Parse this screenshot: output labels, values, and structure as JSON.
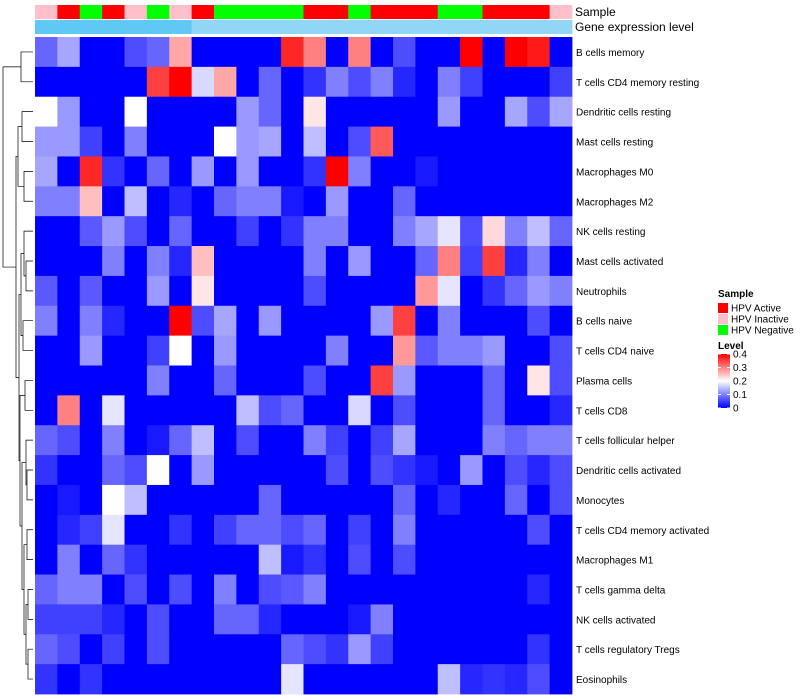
{
  "chart_data": {
    "type": "heatmap",
    "title": "",
    "annotation_tracks": [
      "Sample",
      "Gene expression level"
    ],
    "sample_groups": [
      "HPV Inactive",
      "HPV Active",
      "HPV Negative",
      "HPV Active",
      "HPV Inactive",
      "HPV Negative",
      "HPV Inactive",
      "HPV Active",
      "HPV Negative",
      "HPV Negative",
      "HPV Negative",
      "HPV Negative",
      "HPV Active",
      "HPV Active",
      "HPV Negative",
      "HPV Active",
      "HPV Active",
      "HPV Active",
      "HPV Negative",
      "HPV Negative",
      "HPV Active",
      "HPV Active",
      "HPV Active",
      "HPV Inactive"
    ],
    "expression_track": [
      0.95,
      0.95,
      0.95,
      0.95,
      0.95,
      0.95,
      0.95,
      0.5,
      0.5,
      0.5,
      0.5,
      0.5,
      0.5,
      0.5,
      0.5,
      0.5,
      0.5,
      0.5,
      0.5,
      0.5,
      0.5,
      0.5,
      0.5,
      0.5
    ],
    "rows": [
      "B cells memory",
      "T cells CD4 memory resting",
      "Dendritic cells resting",
      "Mast cells resting",
      "Macrophages M0",
      "Macrophages M2",
      "NK cells resting",
      "Mast cells activated",
      "Neutrophils",
      "B cells naive",
      "T cells CD4 naive",
      "Plasma cells",
      "T cells CD8",
      "T cells follicular helper",
      "Dendritic cells activated",
      "Monocytes",
      "T cells CD4 memory activated",
      "Macrophages M1",
      "T cells gamma delta",
      "NK cells activated",
      "T cells regulatory  Tregs",
      "Eosinophils"
    ],
    "values": [
      [
        0.08,
        0.13,
        0,
        0,
        0.06,
        0.08,
        0.27,
        0,
        0,
        0,
        0,
        0.37,
        0.3,
        0,
        0.3,
        0,
        0.06,
        0,
        0,
        0.4,
        0,
        0.4,
        0.38,
        0
      ],
      [
        0,
        0,
        0,
        0,
        0,
        0.35,
        0.4,
        0.17,
        0.27,
        0,
        0.08,
        0,
        0.04,
        0.1,
        0.06,
        0.1,
        0.03,
        0,
        0.1,
        0.05,
        0,
        0,
        0,
        0.05
      ],
      [
        0.2,
        0.12,
        0,
        0,
        0.2,
        0,
        0,
        0,
        0,
        0.12,
        0.08,
        0,
        0.22,
        0,
        0,
        0,
        0,
        0,
        0.12,
        0,
        0,
        0.13,
        0.06,
        0.13
      ],
      [
        0.12,
        0.12,
        0.05,
        0,
        0.1,
        0,
        0,
        0,
        0.2,
        0.12,
        0.13,
        0,
        0.15,
        0,
        0.06,
        0.33,
        0,
        0,
        0,
        0,
        0,
        0,
        0,
        0
      ],
      [
        0.13,
        0,
        0.37,
        0.04,
        0,
        0.08,
        0,
        0.12,
        0,
        0.12,
        0,
        0,
        0.04,
        0.4,
        0.1,
        0,
        0,
        0.02,
        0,
        0,
        0,
        0,
        0,
        0
      ],
      [
        0.1,
        0.1,
        0.25,
        0,
        0.15,
        0,
        0.03,
        0,
        0.08,
        0.1,
        0.1,
        0.02,
        0,
        0.12,
        0,
        0,
        0.08,
        0,
        0,
        0,
        0,
        0,
        0,
        0
      ],
      [
        0,
        0,
        0.07,
        0.12,
        0.06,
        0,
        0.08,
        0,
        0,
        0.05,
        0,
        0.04,
        0.1,
        0.1,
        0,
        0,
        0.1,
        0.13,
        0.18,
        0.06,
        0.23,
        0.1,
        0.15,
        0.08
      ],
      [
        0,
        0,
        0,
        0.1,
        0,
        0.1,
        0.03,
        0.25,
        0,
        0,
        0,
        0,
        0.1,
        0,
        0.12,
        0,
        0,
        0.08,
        0.3,
        0.05,
        0.35,
        0.03,
        0.1,
        0
      ],
      [
        0.07,
        0,
        0.07,
        0,
        0,
        0.12,
        0,
        0.22,
        0,
        0,
        0,
        0,
        0.06,
        0,
        0,
        0,
        0,
        0.28,
        0.18,
        0,
        0.04,
        0.08,
        0.12,
        0.1
      ],
      [
        0.1,
        0,
        0.1,
        0.03,
        0,
        0,
        0.4,
        0.06,
        0.13,
        0,
        0.12,
        0,
        0,
        0,
        0,
        0.12,
        0.35,
        0,
        0.1,
        0,
        0,
        0,
        0.06,
        0
      ],
      [
        0,
        0,
        0.12,
        0,
        0,
        0.05,
        0.2,
        0,
        0.12,
        0,
        0,
        0,
        0,
        0.1,
        0,
        0,
        0.28,
        0.07,
        0.1,
        0.1,
        0.12,
        0,
        0,
        0.06
      ],
      [
        0,
        0,
        0,
        0,
        0,
        0.1,
        0,
        0,
        0.08,
        0,
        0,
        0,
        0.06,
        0,
        0,
        0.35,
        0.12,
        0,
        0,
        0,
        0.08,
        0,
        0.22,
        0.06
      ],
      [
        0,
        0.3,
        0,
        0.18,
        0,
        0,
        0,
        0,
        0,
        0.15,
        0.06,
        0.08,
        0,
        0,
        0.17,
        0,
        0.06,
        0,
        0,
        0,
        0.08,
        0,
        0,
        0.03
      ],
      [
        0.08,
        0.06,
        0,
        0.1,
        0,
        0.02,
        0.08,
        0.15,
        0,
        0.06,
        0,
        0,
        0.1,
        0.05,
        0,
        0.05,
        0.13,
        0,
        0,
        0,
        0.1,
        0.08,
        0.1,
        0.1
      ],
      [
        0.04,
        0,
        0,
        0.08,
        0.06,
        0.2,
        0,
        0.12,
        0,
        0,
        0,
        0,
        0,
        0.06,
        0,
        0.06,
        0.04,
        0.02,
        0,
        0.12,
        0,
        0.06,
        0.03,
        0.06
      ],
      [
        0,
        0.02,
        0,
        0.2,
        0.15,
        0,
        0,
        0,
        0,
        0,
        0.08,
        0,
        0,
        0,
        0,
        0,
        0.08,
        0,
        0.03,
        0,
        0,
        0.08,
        0,
        0.06
      ],
      [
        0,
        0.03,
        0.05,
        0.18,
        0,
        0,
        0.04,
        0,
        0.05,
        0.08,
        0.08,
        0.06,
        0.08,
        0,
        0.05,
        0,
        0.1,
        0,
        0,
        0,
        0,
        0,
        0.06,
        0
      ],
      [
        0,
        0.1,
        0,
        0.08,
        0.04,
        0,
        0,
        0,
        0,
        0,
        0.15,
        0.02,
        0.04,
        0,
        0.06,
        0,
        0.06,
        0,
        0,
        0,
        0,
        0,
        0,
        0
      ],
      [
        0.08,
        0.1,
        0.1,
        0,
        0.06,
        0,
        0.06,
        0,
        0.1,
        0,
        0.06,
        0.07,
        0.1,
        0,
        0,
        0,
        0,
        0,
        0,
        0,
        0,
        0,
        0.03,
        0
      ],
      [
        0.05,
        0.05,
        0.05,
        0.03,
        0,
        0.06,
        0,
        0,
        0.08,
        0.08,
        0.03,
        0,
        0,
        0,
        0.02,
        0.1,
        0,
        0,
        0,
        0,
        0,
        0,
        0,
        0
      ],
      [
        0.08,
        0.06,
        0,
        0.05,
        0,
        0.06,
        0,
        0,
        0,
        0,
        0,
        0.08,
        0.06,
        0.04,
        0.12,
        0.05,
        0,
        0,
        0,
        0,
        0,
        0,
        0.04,
        0
      ],
      [
        0.04,
        0,
        0.04,
        0,
        0,
        0,
        0,
        0,
        0,
        0,
        0,
        0.18,
        0,
        0,
        0,
        0,
        0,
        0,
        0.15,
        0.03,
        0.04,
        0.03,
        0.06,
        0
      ]
    ],
    "legend": {
      "sample_title": "Sample",
      "sample_entries": [
        {
          "label": "HPV Active",
          "color": "#ff0000"
        },
        {
          "label": "HPV Inactive",
          "color": "#ffc0cb"
        },
        {
          "label": "HPV Negative",
          "color": "#00ff00"
        }
      ],
      "level_title": "Level",
      "level_ticks": [
        "0.4",
        "0.3",
        "0.2",
        "0.1",
        "0"
      ],
      "level_tick_values": [
        0.4,
        0.3,
        0.2,
        0.1,
        0
      ],
      "level_range": [
        0,
        0.4
      ]
    },
    "colors": {
      "low": "#0000ff",
      "mid": "#ffffff",
      "high": "#ff0000",
      "expression_light": "#c6e6f6",
      "expression_dark": "#5bc6f4"
    }
  }
}
